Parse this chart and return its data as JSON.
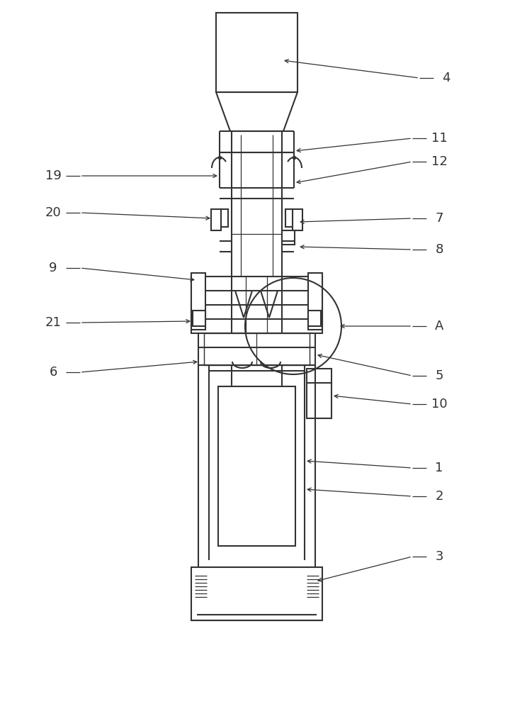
{
  "bg_color": "#ffffff",
  "line_color": "#333333",
  "lw": 1.5,
  "tlw": 0.9,
  "fs": 13
}
